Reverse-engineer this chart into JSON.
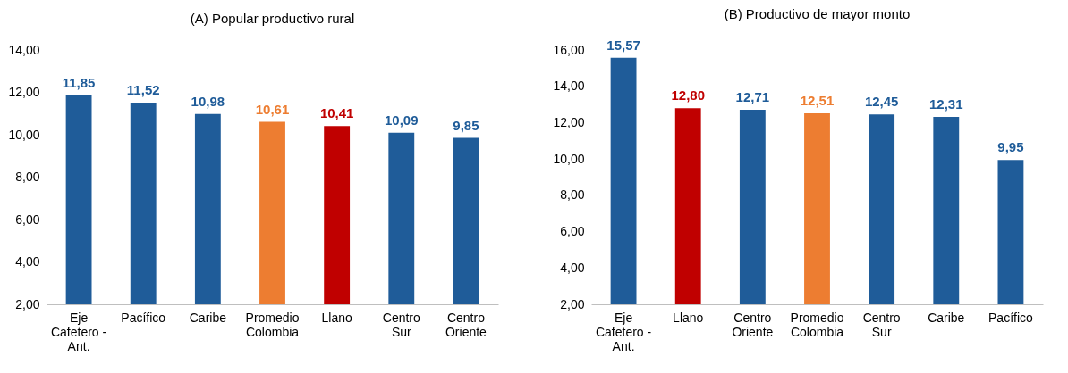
{
  "chart_data": [
    {
      "type": "bar",
      "title": "(A) Popular productivo rural",
      "categories": [
        "Eje Cafetero - Ant.",
        "Pacífico",
        "Caribe",
        "Promedio Colombia",
        "Llano",
        "Centro Sur",
        "Centro Oriente"
      ],
      "values": [
        11.85,
        11.52,
        10.98,
        10.61,
        10.41,
        10.09,
        9.85
      ],
      "colors": [
        "#1f5c99",
        "#1f5c99",
        "#1f5c99",
        "#ed7d31",
        "#c00000",
        "#1f5c99",
        "#1f5c99"
      ],
      "value_labels": [
        "11,85",
        "11,52",
        "10,98",
        "10,61",
        "10,41",
        "10,09",
        "9,85"
      ],
      "ylim": [
        2,
        14
      ],
      "yticks": [
        {
          "value": 2,
          "label": "2,00"
        },
        {
          "value": 4,
          "label": "4,00"
        },
        {
          "value": 6,
          "label": "6,00"
        },
        {
          "value": 8,
          "label": "8,00"
        },
        {
          "value": 10,
          "label": "10,00"
        },
        {
          "value": 12,
          "label": "12,00"
        },
        {
          "value": 14,
          "label": "14,00"
        }
      ],
      "grid": false
    },
    {
      "type": "bar",
      "title": "(B) Productivo de mayor monto",
      "categories": [
        "Eje Cafetero - Ant.",
        "Llano",
        "Centro Oriente",
        "Promedio Colombia",
        "Centro Sur",
        "Caribe",
        "Pacífico"
      ],
      "values": [
        15.57,
        12.8,
        12.71,
        12.51,
        12.45,
        12.31,
        9.95
      ],
      "colors": [
        "#1f5c99",
        "#c00000",
        "#1f5c99",
        "#ed7d31",
        "#1f5c99",
        "#1f5c99",
        "#1f5c99"
      ],
      "value_labels": [
        "15,57",
        "12,80",
        "12,71",
        "12,51",
        "12,45",
        "12,31",
        "9,95"
      ],
      "ylim": [
        2,
        16
      ],
      "yticks": [
        {
          "value": 2,
          "label": "2,00"
        },
        {
          "value": 4,
          "label": "4,00"
        },
        {
          "value": 6,
          "label": "6,00"
        },
        {
          "value": 8,
          "label": "8,00"
        },
        {
          "value": 10,
          "label": "10,00"
        },
        {
          "value": 12,
          "label": "12,00"
        },
        {
          "value": 14,
          "label": "14,00"
        },
        {
          "value": 16,
          "label": "16,00"
        }
      ],
      "grid": false
    }
  ]
}
